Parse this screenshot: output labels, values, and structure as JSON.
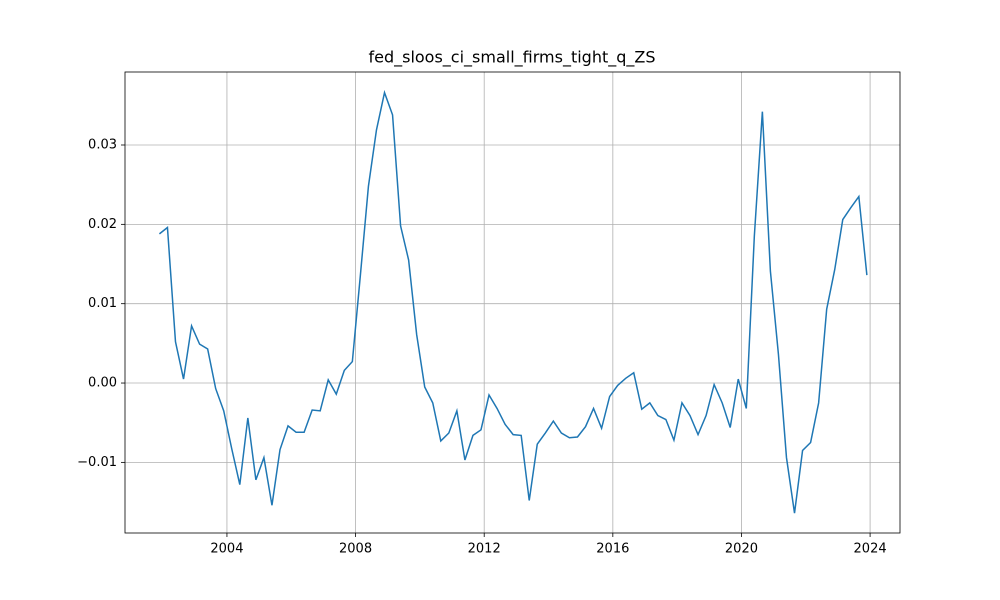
{
  "chart_data": {
    "type": "line",
    "title": "fed_sloos_ci_small_firms_tight_q_ZS",
    "x": [
      2001.9,
      2002.15,
      2002.4,
      2002.65,
      2002.9,
      2003.15,
      2003.4,
      2003.65,
      2003.9,
      2004.15,
      2004.4,
      2004.65,
      2004.9,
      2005.15,
      2005.4,
      2005.65,
      2005.9,
      2006.15,
      2006.4,
      2006.65,
      2006.9,
      2007.15,
      2007.4,
      2007.65,
      2007.9,
      2008.15,
      2008.4,
      2008.65,
      2008.9,
      2009.15,
      2009.4,
      2009.65,
      2009.9,
      2010.15,
      2010.4,
      2010.65,
      2010.9,
      2011.15,
      2011.4,
      2011.65,
      2011.9,
      2012.15,
      2012.4,
      2012.65,
      2012.9,
      2013.15,
      2013.4,
      2013.65,
      2013.9,
      2014.15,
      2014.4,
      2014.65,
      2014.9,
      2015.15,
      2015.4,
      2015.65,
      2015.9,
      2016.15,
      2016.4,
      2016.65,
      2016.9,
      2017.15,
      2017.4,
      2017.65,
      2017.9,
      2018.15,
      2018.4,
      2018.65,
      2018.9,
      2019.15,
      2019.4,
      2019.65,
      2019.9,
      2020.15,
      2020.4,
      2020.65,
      2020.9,
      2021.15,
      2021.4,
      2021.65,
      2021.9,
      2022.15,
      2022.4,
      2022.65,
      2022.9,
      2023.15,
      2023.4,
      2023.65,
      2023.9
    ],
    "series": [
      {
        "color": "#1f77b4",
        "values": [
          0.0188,
          0.0196,
          0.0052,
          0.0005,
          0.0072,
          0.0049,
          0.0043,
          -0.0007,
          -0.0035,
          -0.0083,
          -0.0128,
          -0.0044,
          -0.0122,
          -0.0094,
          -0.0154,
          -0.0084,
          -0.0054,
          -0.0062,
          -0.0062,
          -0.0034,
          -0.0035,
          0.0004,
          -0.0014,
          0.0016,
          0.0027,
          0.0136,
          0.0248,
          0.0319,
          0.0366,
          0.0338,
          0.0198,
          0.0155,
          0.0061,
          -0.0005,
          -0.0025,
          -0.0073,
          -0.0063,
          -0.0035,
          -0.0097,
          -0.0066,
          -0.0059,
          -0.0015,
          -0.0032,
          -0.0052,
          -0.0065,
          -0.0066,
          -0.0148,
          -0.0077,
          -0.0063,
          -0.0048,
          -0.0063,
          -0.0069,
          -0.0068,
          -0.0055,
          -0.0032,
          -0.0057,
          -0.0017,
          -0.0003,
          0.0006,
          0.0013,
          -0.0033,
          -0.0025,
          -0.0041,
          -0.0046,
          -0.0072,
          -0.0025,
          -0.0041,
          -0.0065,
          -0.0041,
          -0.0002,
          -0.0025,
          -0.0056,
          0.0005,
          -0.0032,
          0.0185,
          0.0342,
          0.0141,
          0.0036,
          -0.0094,
          -0.0164,
          -0.0085,
          -0.0075,
          -0.0025,
          0.0093,
          0.0143,
          0.0206,
          0.0221,
          0.0235,
          0.0136
        ]
      }
    ],
    "xlim": [
      2000.83,
      2024.93
    ],
    "xticks": [
      2004,
      2008,
      2012,
      2016,
      2020,
      2024
    ],
    "ylim": [
      -0.0189,
      0.0392
    ],
    "yticks": [
      {
        "value": -0.01,
        "label": "−0.01"
      },
      {
        "value": 0,
        "label": "0.00"
      },
      0.01,
      0.02,
      0.03
    ],
    "grid": true
  }
}
